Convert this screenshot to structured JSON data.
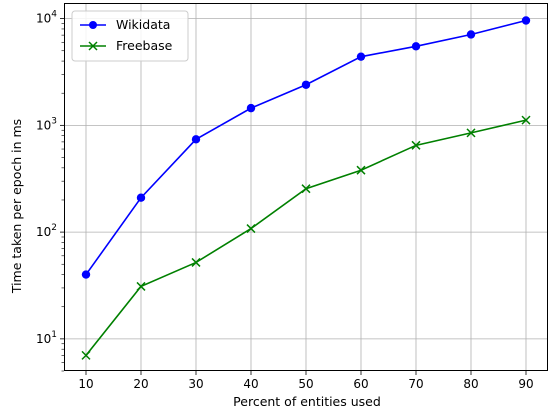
{
  "chart_data": {
    "type": "line",
    "title": "",
    "xlabel": "Percent of entities used",
    "ylabel": "Time taken per epoch in ms",
    "yscale": "log",
    "x": [
      10,
      20,
      30,
      40,
      50,
      60,
      70,
      80,
      90
    ],
    "xticks": [
      "10",
      "20",
      "30",
      "40",
      "50",
      "60",
      "70",
      "80",
      "90"
    ],
    "xlim": [
      6,
      94
    ],
    "ylim": [
      5,
      14000
    ],
    "yticks": [
      {
        "value": 10,
        "base": "10",
        "exp": "1"
      },
      {
        "value": 100,
        "base": "10",
        "exp": "2"
      },
      {
        "value": 1000,
        "base": "10",
        "exp": "3"
      },
      {
        "value": 10000,
        "base": "10",
        "exp": "4"
      }
    ],
    "grid": true,
    "legend_position": "top-left",
    "series": [
      {
        "name": "Wikidata",
        "color": "#0000ff",
        "marker": "circle",
        "values": [
          40,
          210,
          740,
          1450,
          2400,
          4400,
          5500,
          7100,
          9600
        ]
      },
      {
        "name": "Freebase",
        "color": "#008000",
        "marker": "x",
        "values": [
          7,
          31,
          52,
          108,
          255,
          380,
          650,
          850,
          1120
        ]
      }
    ]
  }
}
